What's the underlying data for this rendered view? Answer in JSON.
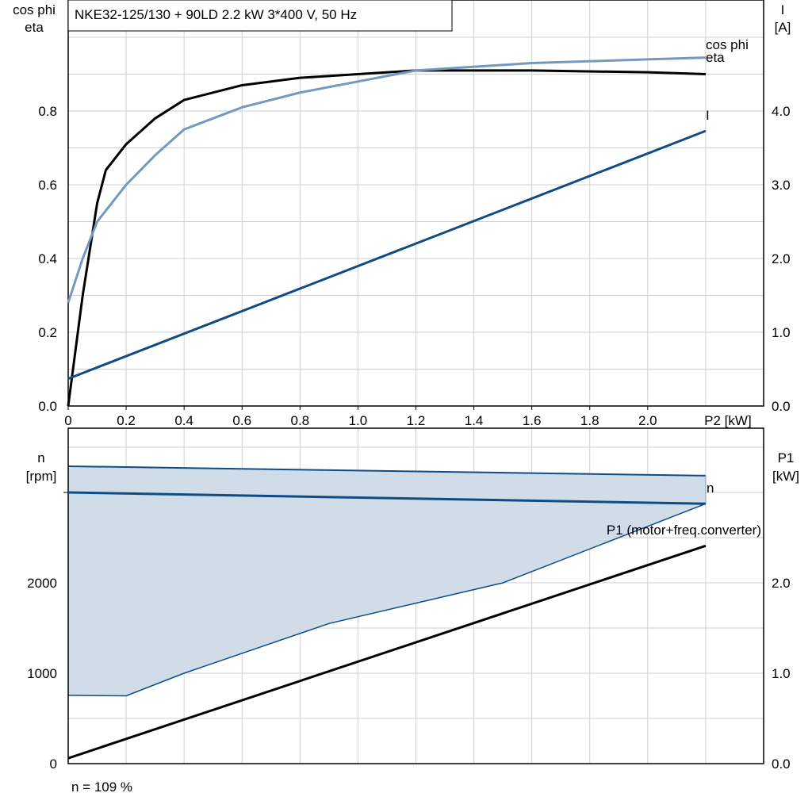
{
  "chart_data": [
    {
      "type": "line",
      "title": "NKE32-125/130 + 90LD   2.2 kW   3*400 V, 50 Hz",
      "xlabel": "P2 [kW]",
      "ylabel_left": [
        "cos phi",
        "eta"
      ],
      "ylabel_right": [
        "I",
        "[A]"
      ],
      "xlim": [
        0,
        2.4
      ],
      "ylim_left": [
        0,
        1.1
      ],
      "ylim_right": [
        0,
        5.5
      ],
      "x_ticks": [
        "0",
        "0.2",
        "0.4",
        "0.6",
        "0.8",
        "1.0",
        "1.2",
        "1.4",
        "1.6",
        "1.8",
        "2.0"
      ],
      "y_ticks_left": [
        "0.0",
        "0.2",
        "0.4",
        "0.6",
        "0.8"
      ],
      "y_ticks_right": [
        "0.0",
        "1.0",
        "2.0",
        "3.0",
        "4.0"
      ],
      "grid": true,
      "series": [
        {
          "name": "eta",
          "axis": "left",
          "color": "#000000",
          "x": [
            0,
            0.05,
            0.1,
            0.13,
            0.2,
            0.3,
            0.4,
            0.6,
            0.8,
            1.0,
            1.2,
            1.6,
            2.0,
            2.2
          ],
          "y": [
            0,
            0.3,
            0.55,
            0.64,
            0.71,
            0.78,
            0.83,
            0.87,
            0.89,
            0.9,
            0.91,
            0.91,
            0.905,
            0.9
          ]
        },
        {
          "name": "cos phi",
          "axis": "left",
          "color": "#7399bf",
          "x": [
            0,
            0.05,
            0.1,
            0.2,
            0.3,
            0.4,
            0.6,
            0.8,
            1.0,
            1.2,
            1.6,
            2.0,
            2.2
          ],
          "y": [
            0.28,
            0.4,
            0.5,
            0.6,
            0.68,
            0.75,
            0.81,
            0.85,
            0.88,
            0.91,
            0.93,
            0.94,
            0.945
          ]
        },
        {
          "name": "I",
          "axis": "right",
          "color": "#0f4c85",
          "x": [
            0,
            2.2
          ],
          "y": [
            0.37,
            3.73
          ]
        }
      ]
    },
    {
      "type": "line",
      "ylabel_left": [
        "n",
        "[rpm]"
      ],
      "ylabel_right": [
        "P1",
        "[kW]"
      ],
      "xlim": [
        0,
        2.4
      ],
      "ylim_left": [
        0,
        3700
      ],
      "ylim_right": [
        0,
        3.7
      ],
      "y_ticks_left": [
        "0",
        "1000",
        "2000"
      ],
      "y_ticks_right": [
        "0.0",
        "1.0",
        "2.0"
      ],
      "grid": true,
      "band": {
        "color": "#d0dce8",
        "upper": {
          "x": [
            0,
            2.2
          ],
          "y": [
            3290,
            3185
          ]
        },
        "lower": {
          "x": [
            0,
            0.2,
            0.4,
            0.9,
            1.5,
            2.2
          ],
          "y": [
            755,
            750,
            1000,
            1550,
            2000,
            2875
          ]
        }
      },
      "series": [
        {
          "name": "n",
          "axis": "left",
          "color": "#0f4c85",
          "x": [
            0,
            2.2
          ],
          "y": [
            3000,
            2875
          ]
        },
        {
          "name": "P1 (motor+freq.converter)",
          "axis": "right",
          "color": "#000000",
          "x": [
            0,
            2.2
          ],
          "y": [
            0.06,
            2.41
          ]
        }
      ],
      "footnote": "n = 109 %"
    }
  ]
}
